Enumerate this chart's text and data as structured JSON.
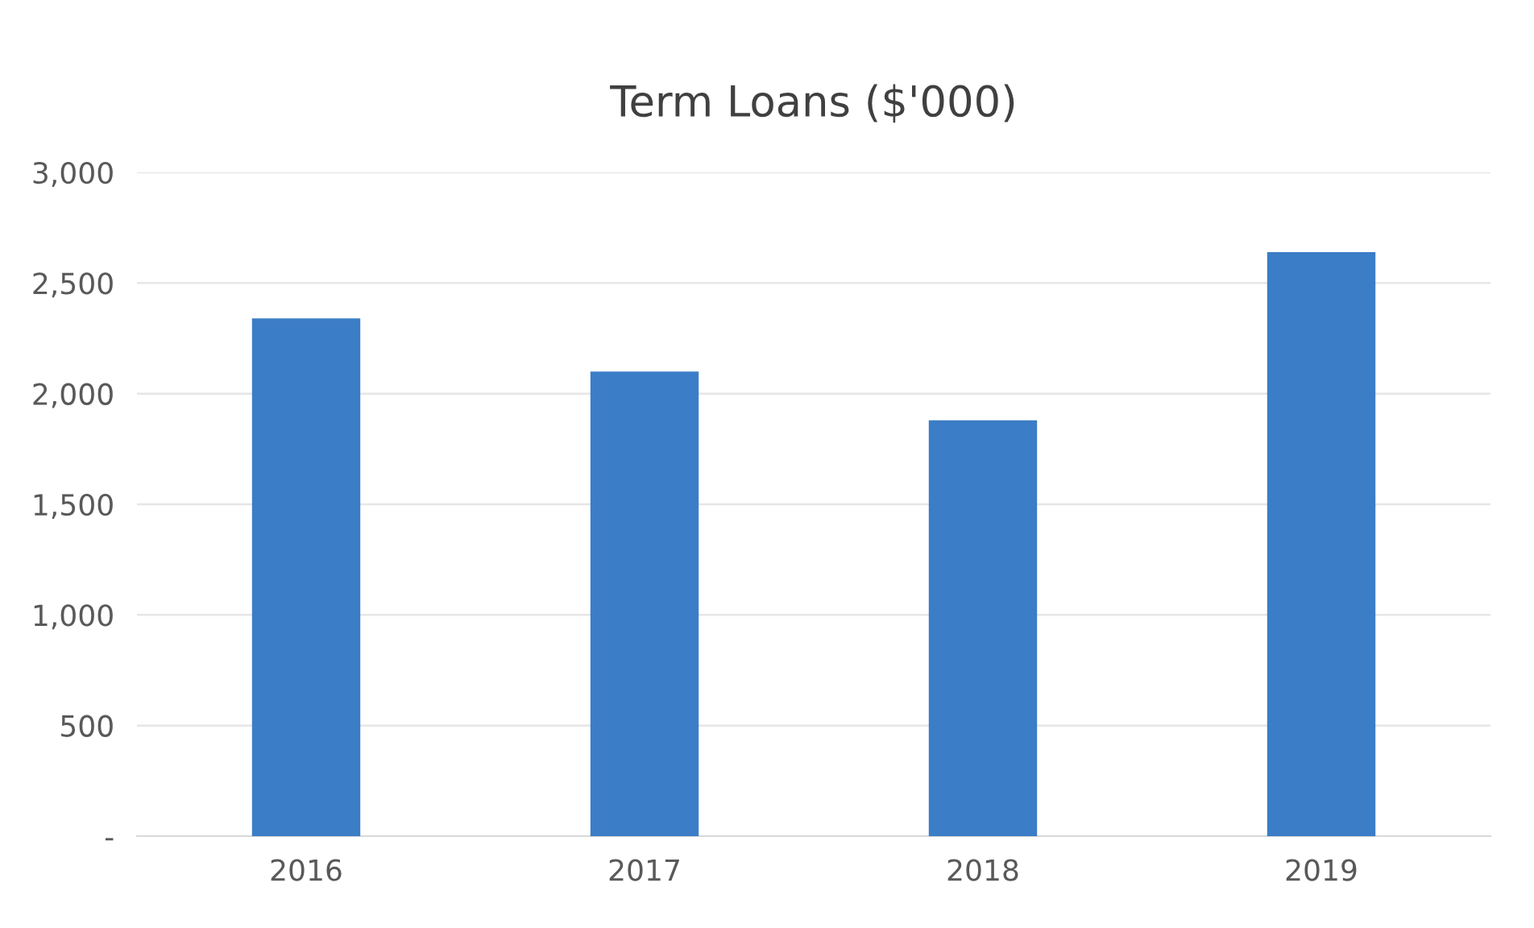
{
  "chart_data": {
    "type": "bar",
    "title": "Term Loans ($'000)",
    "categories": [
      "2016",
      "2017",
      "2018",
      "2019"
    ],
    "values": [
      2340,
      2100,
      1880,
      2640
    ],
    "color": "#3b7dc6",
    "ylim": [
      0,
      3000
    ],
    "yticks": [
      {
        "value": 0,
        "label": "-"
      },
      500,
      {
        "value": 1000,
        "label": "1,000"
      },
      {
        "value": 1500,
        "label": "1,500"
      },
      {
        "value": 2000,
        "label": "2,000"
      },
      {
        "value": 2500,
        "label": "2,500"
      },
      {
        "value": 3000,
        "label": "3,000"
      }
    ],
    "grid": "y",
    "legend": false
  }
}
